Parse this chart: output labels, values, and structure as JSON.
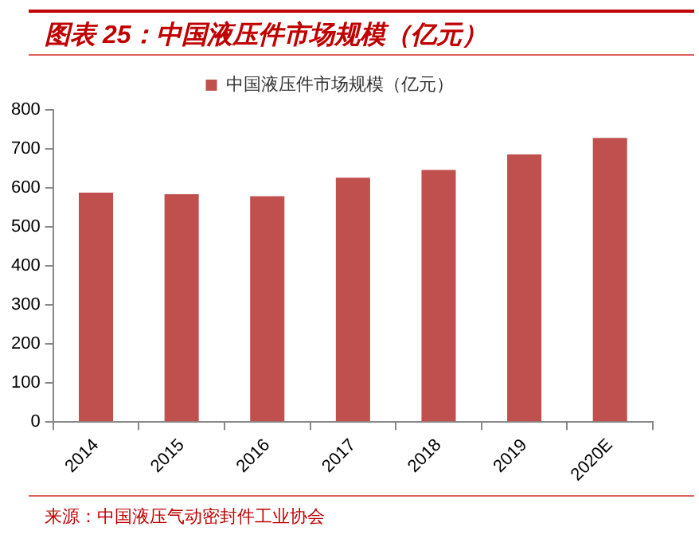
{
  "chart_data": {
    "type": "bar",
    "title": "图表 25：中国液压件市场规模（亿元）",
    "categories": [
      "2014",
      "2015",
      "2016",
      "2017",
      "2018",
      "2019",
      "2020E"
    ],
    "series": [
      {
        "name": "中国液压件市场规模（亿元）",
        "color": "#c0504d",
        "values": [
          588,
          584,
          579,
          626,
          646,
          686,
          728
        ]
      }
    ],
    "ylim": [
      0,
      800
    ],
    "yticks": [
      0,
      100,
      200,
      300,
      400,
      500,
      600,
      700,
      800
    ],
    "grid": false,
    "legend": "top",
    "annotations": [
      "来源：中国液压气动密封件工业协会"
    ]
  }
}
